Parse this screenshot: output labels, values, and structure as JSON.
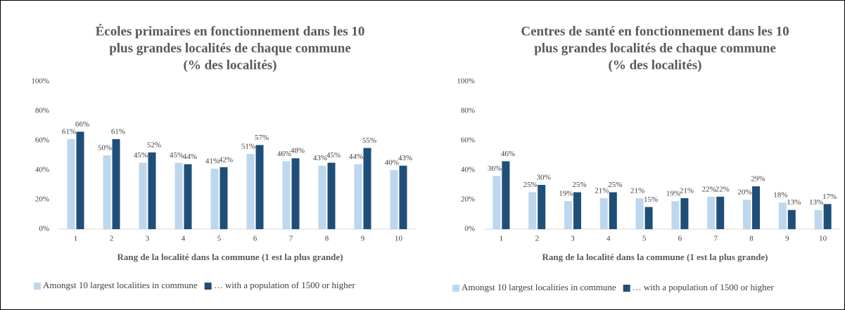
{
  "chart_data": [
    {
      "type": "bar",
      "title": [
        "Écoles primaires en fonctionnement dans les 10",
        "plus grandes localités de chaque commune",
        "(% des localités)"
      ],
      "x_label": "Rang de la localité dans la commune (1 est la plus grande)",
      "categories": [
        "1",
        "2",
        "3",
        "4",
        "5",
        "6",
        "7",
        "8",
        "9",
        "10"
      ],
      "series": [
        {
          "name": "Amongst 10 largest localities in commune",
          "color": "#bdd7ee",
          "values": [
            61,
            50,
            45,
            45,
            41,
            51,
            46,
            43,
            44,
            40
          ],
          "value_labels": [
            "61%",
            "50%",
            "45%",
            "45%",
            "41%",
            "51%",
            "46%",
            "43%",
            "44%",
            "40%"
          ]
        },
        {
          "name": "… with a population of 1500 or higher",
          "color": "#1f4e79",
          "values": [
            66,
            61,
            52,
            44,
            42,
            57,
            48,
            45,
            55,
            43
          ],
          "value_labels": [
            "66%",
            "61%",
            "52%",
            "44%",
            "42%",
            "57%",
            "48%",
            "45%",
            "55%",
            "43%"
          ]
        }
      ],
      "ylim": [
        0,
        100
      ],
      "yticks": [
        {
          "value": 0,
          "label": "0%"
        },
        {
          "value": 20,
          "label": "20%"
        },
        {
          "value": 40,
          "label": "40%"
        },
        {
          "value": 60,
          "label": "60%"
        },
        {
          "value": 80,
          "label": "80%"
        },
        {
          "value": 100,
          "label": "100%"
        }
      ],
      "grid": false,
      "legend": "bottom"
    },
    {
      "type": "bar",
      "title": [
        "Centres de santé en fonctionnement dans les 10",
        "plus grandes localités de chaque commune",
        "(% des localités)"
      ],
      "x_label": "Rang de la localité dans la commune (1 est la plus grande)",
      "categories": [
        "1",
        "2",
        "3",
        "4",
        "5",
        "6",
        "7",
        "8",
        "9",
        "10"
      ],
      "series": [
        {
          "name": "Amongst 10 largest localities in commune",
          "color": "#bdd7ee",
          "values": [
            36,
            25,
            19,
            21,
            21,
            19,
            22,
            20,
            18,
            13
          ],
          "value_labels": [
            "36%",
            "25%",
            "19%",
            "21%",
            "21%",
            "19%",
            "22%",
            "20%",
            "18%",
            "13%"
          ]
        },
        {
          "name": "… with a population of 1500 or higher",
          "color": "#1f4e79",
          "values": [
            46,
            30,
            25,
            25,
            15,
            21,
            22,
            29,
            13,
            17
          ],
          "value_labels": [
            "46%",
            "30%",
            "25%",
            "25%",
            "15%",
            "21%",
            "22%",
            "29%",
            "13%",
            "17%"
          ]
        }
      ],
      "ylim": [
        0,
        100
      ],
      "yticks": [
        {
          "value": 0,
          "label": "0%"
        },
        {
          "value": 20,
          "label": "20%"
        },
        {
          "value": 40,
          "label": "40%"
        },
        {
          "value": 60,
          "label": "60%"
        },
        {
          "value": 80,
          "label": "80%"
        },
        {
          "value": 100,
          "label": "100%"
        }
      ],
      "grid": false,
      "legend": "bottom"
    }
  ]
}
